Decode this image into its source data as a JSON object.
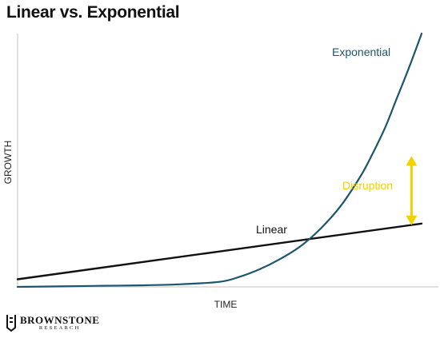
{
  "chart_data": {
    "type": "line",
    "title": "Linear vs. Exponential",
    "xlabel": "TIME",
    "ylabel": "GROWTH",
    "xlim": [
      0,
      100
    ],
    "ylim": [
      0,
      100
    ],
    "grid": false,
    "series": [
      {
        "name": "Linear",
        "color": "#111111",
        "x": [
          0,
          100
        ],
        "y": [
          3,
          25
        ]
      },
      {
        "name": "Exponential",
        "color": "#1c566e",
        "x": [
          0,
          10,
          20,
          30,
          40,
          50,
          55,
          60,
          65,
          70,
          75,
          80,
          85,
          88,
          91,
          94,
          97,
          100
        ],
        "y": [
          0,
          0.2,
          0.4,
          0.6,
          1,
          2,
          4,
          7,
          11,
          16,
          23,
          32,
          44,
          53,
          63,
          75,
          87,
          100
        ]
      }
    ],
    "annotations": [
      {
        "text": "Disruption",
        "color": "#f5d000",
        "x": 97.5,
        "y_from": 51,
        "y_to": 25
      }
    ]
  },
  "branding": {
    "name": "BROWNSTONE",
    "sub": "RESEARCH"
  }
}
